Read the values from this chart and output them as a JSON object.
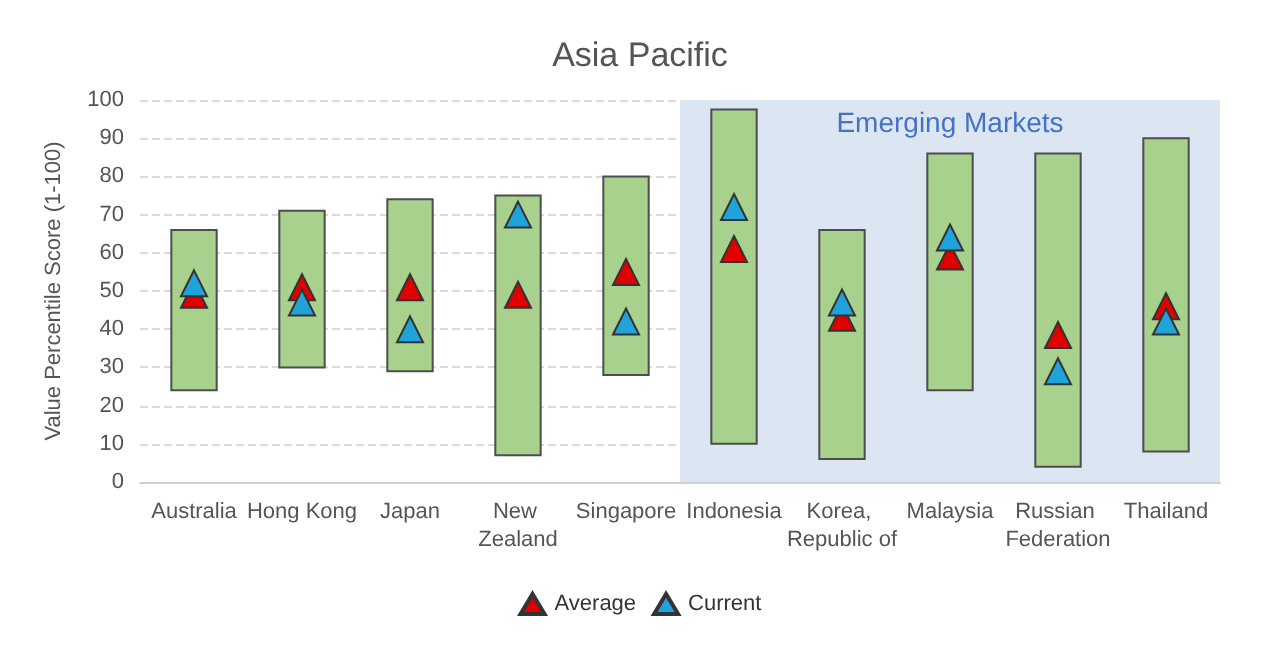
{
  "chart_data": {
    "type": "bar",
    "title": "Asia Pacific",
    "ylabel": "Value Percentile Score (1-100)",
    "categories": [
      "Australia",
      "Hong Kong",
      "Japan",
      "New Zealand",
      "Singapore",
      "Indonesia",
      "Korea, Republic of",
      "Malaysia",
      "Russian Federation",
      "Thailand"
    ],
    "series": [
      {
        "color": "#a9d18e",
        "base": [
          24,
          30,
          29,
          7,
          28,
          10,
          6,
          24,
          4,
          8
        ],
        "values": [
          42,
          41,
          45,
          68,
          52,
          87.5,
          60,
          62,
          82,
          82
        ]
      },
      {
        "type": "scatter",
        "name": "Average",
        "color": "#e00000",
        "marker": "triangle",
        "values": [
          49,
          51,
          51,
          49,
          55,
          61,
          43,
          59,
          38.5,
          46
        ]
      },
      {
        "type": "scatter",
        "name": "Current",
        "color": "#1fa3d8",
        "marker": "triangle",
        "values": [
          52,
          47,
          40,
          70,
          42,
          72,
          47,
          64,
          29,
          42
        ]
      }
    ],
    "bands": [
      {
        "axis": "x",
        "from": "Indonesia",
        "to": "Thailand",
        "label": "Emerging Markets",
        "color": "#dce6f2"
      }
    ],
    "ylim": [
      0,
      100
    ],
    "yticks": [
      0,
      10,
      20,
      30,
      40,
      50,
      60,
      70,
      80,
      90,
      100
    ],
    "grid": "y",
    "legend": "bottom"
  }
}
